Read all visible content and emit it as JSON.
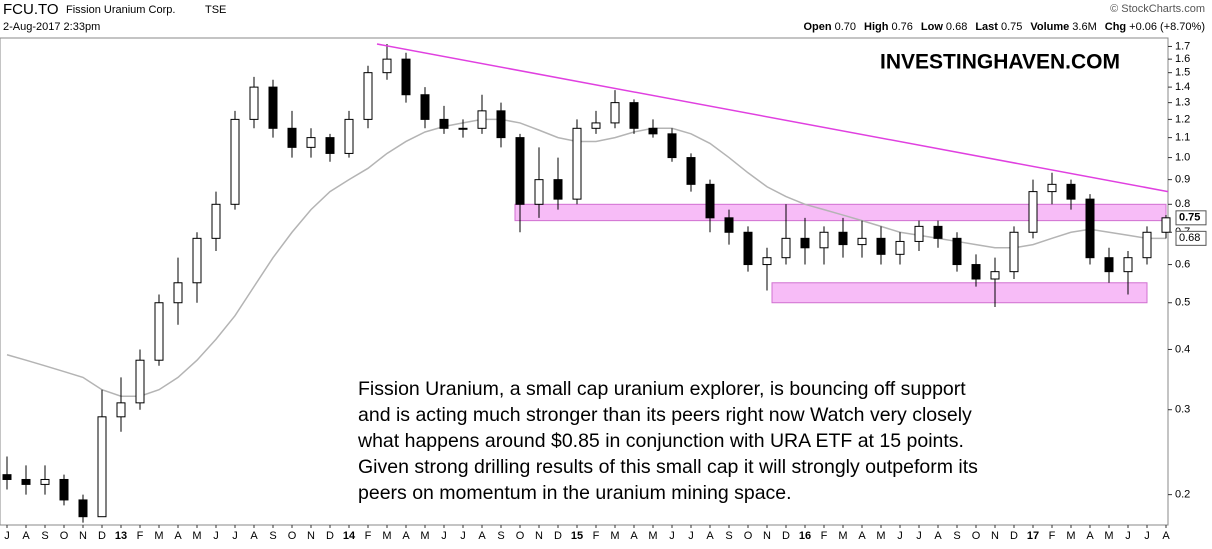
{
  "chart_data": {
    "type": "candlestick",
    "header": {
      "symbol": "FCU.TO",
      "name": "Fission Uranium Corp.",
      "exchange": "TSE",
      "date": "2-Aug-2017 2:33pm",
      "source": "© StockCharts.com"
    },
    "quote": [
      {
        "label": "Open",
        "value": "0.70"
      },
      {
        "label": "High",
        "value": "0.76"
      },
      {
        "label": "Low",
        "value": "0.68"
      },
      {
        "label": "Last",
        "value": "0.75"
      },
      {
        "label": "Volume",
        "value": "3.6M"
      },
      {
        "label": "Chg",
        "value": "+0.06 (+8.70%)"
      }
    ],
    "watermark": "INVESTINGHAVEN.COM",
    "annotation": [
      "Fission Uranium, a small cap uranium explorer, is bouncing off support",
      "and is acting much stronger than its peers right now Watch very closely",
      "what happens around $0.85 in conjunction with URA ETF at 15 points.",
      "Given strong drilling results of this small cap it will strongly outpeform its",
      "peers on momentum in the uranium mining space."
    ],
    "categories": [
      "J",
      "A",
      "S",
      "O",
      "N",
      "D",
      "13",
      "F",
      "M",
      "A",
      "M",
      "J",
      "J",
      "A",
      "S",
      "O",
      "N",
      "D",
      "14",
      "F",
      "M",
      "A",
      "M",
      "J",
      "J",
      "A",
      "S",
      "O",
      "N",
      "D",
      "15",
      "F",
      "M",
      "A",
      "M",
      "J",
      "J",
      "A",
      "S",
      "O",
      "N",
      "D",
      "16",
      "F",
      "M",
      "A",
      "M",
      "J",
      "J",
      "A",
      "S",
      "O",
      "N",
      "D",
      "17",
      "F",
      "M",
      "A",
      "M",
      "J",
      "J",
      "A"
    ],
    "open": [
      0.22,
      0.215,
      0.21,
      0.215,
      0.195,
      0.18,
      0.29,
      0.31,
      0.38,
      0.5,
      0.55,
      0.68,
      0.8,
      1.2,
      1.4,
      1.15,
      1.05,
      1.1,
      1.02,
      1.2,
      1.5,
      1.6,
      1.35,
      1.2,
      1.15,
      1.15,
      1.25,
      1.1,
      0.8,
      0.9,
      0.82,
      1.15,
      1.18,
      1.3,
      1.15,
      1.12,
      1.0,
      0.88,
      0.75,
      0.7,
      0.6,
      0.62,
      0.68,
      0.65,
      0.7,
      0.66,
      0.68,
      0.63,
      0.67,
      0.72,
      0.68,
      0.6,
      0.56,
      0.58,
      0.7,
      0.85,
      0.88,
      0.82,
      0.62,
      0.58,
      0.62,
      0.7
    ],
    "high": [
      0.24,
      0.23,
      0.23,
      0.22,
      0.2,
      0.33,
      0.35,
      0.4,
      0.52,
      0.62,
      0.7,
      0.85,
      1.25,
      1.47,
      1.45,
      1.25,
      1.15,
      1.12,
      1.25,
      1.55,
      1.72,
      1.65,
      1.4,
      1.28,
      1.2,
      1.35,
      1.3,
      1.12,
      1.05,
      1.0,
      1.2,
      1.25,
      1.38,
      1.32,
      1.2,
      1.15,
      1.02,
      0.9,
      0.78,
      0.72,
      0.65,
      0.8,
      0.75,
      0.72,
      0.75,
      0.74,
      0.72,
      0.7,
      0.74,
      0.74,
      0.7,
      0.63,
      0.62,
      0.72,
      0.9,
      0.93,
      0.9,
      0.84,
      0.65,
      0.64,
      0.72,
      0.76
    ],
    "low": [
      0.205,
      0.2,
      0.2,
      0.19,
      0.175,
      0.18,
      0.27,
      0.3,
      0.37,
      0.45,
      0.5,
      0.64,
      0.78,
      1.15,
      1.1,
      1.0,
      1.0,
      0.98,
      1.0,
      1.15,
      1.45,
      1.3,
      1.15,
      1.12,
      1.1,
      1.12,
      1.05,
      0.7,
      0.75,
      0.78,
      0.8,
      1.12,
      1.15,
      1.12,
      1.1,
      0.98,
      0.85,
      0.7,
      0.66,
      0.58,
      0.53,
      0.6,
      0.6,
      0.6,
      0.62,
      0.62,
      0.6,
      0.6,
      0.64,
      0.65,
      0.58,
      0.54,
      0.49,
      0.56,
      0.68,
      0.8,
      0.78,
      0.6,
      0.55,
      0.52,
      0.6,
      0.68
    ],
    "close": [
      0.215,
      0.21,
      0.215,
      0.195,
      0.18,
      0.29,
      0.31,
      0.38,
      0.5,
      0.55,
      0.68,
      0.8,
      1.2,
      1.4,
      1.15,
      1.05,
      1.1,
      1.02,
      1.2,
      1.5,
      1.6,
      1.35,
      1.2,
      1.15,
      1.15,
      1.25,
      1.1,
      0.8,
      0.9,
      0.82,
      1.15,
      1.18,
      1.3,
      1.15,
      1.12,
      1.0,
      0.88,
      0.75,
      0.7,
      0.6,
      0.62,
      0.68,
      0.65,
      0.7,
      0.66,
      0.68,
      0.63,
      0.67,
      0.72,
      0.68,
      0.6,
      0.56,
      0.58,
      0.7,
      0.85,
      0.88,
      0.82,
      0.62,
      0.58,
      0.62,
      0.7,
      0.75
    ],
    "moving_average": {
      "color": "#b4b4b4",
      "values": [
        0.39,
        0.38,
        0.37,
        0.36,
        0.35,
        0.33,
        0.32,
        0.32,
        0.33,
        0.35,
        0.38,
        0.42,
        0.47,
        0.54,
        0.62,
        0.7,
        0.78,
        0.85,
        0.9,
        0.95,
        1.02,
        1.08,
        1.13,
        1.16,
        1.18,
        1.2,
        1.2,
        1.18,
        1.14,
        1.1,
        1.08,
        1.08,
        1.1,
        1.13,
        1.15,
        1.15,
        1.12,
        1.07,
        1.0,
        0.93,
        0.87,
        0.83,
        0.8,
        0.78,
        0.76,
        0.74,
        0.72,
        0.7,
        0.69,
        0.68,
        0.67,
        0.66,
        0.65,
        0.65,
        0.66,
        0.68,
        0.7,
        0.71,
        0.7,
        0.69,
        0.68,
        0.68
      ]
    },
    "trendline": {
      "color": "#e040e0",
      "values": [
        1.72,
        0.85
      ]
    },
    "support_zones": {
      "color": "#f4a6f4",
      "zones": [
        {
          "low": 0.74,
          "high": 0.8
        },
        {
          "low": 0.5,
          "high": 0.55
        }
      ]
    },
    "price_labels": [
      {
        "value": 0.75,
        "label": "0.75"
      },
      {
        "value": 0.68,
        "label": "0.68"
      }
    ],
    "log_scale": true,
    "ylim": [
      0.173,
      1.77
    ],
    "yticks": [
      0.2,
      0.3,
      0.4,
      0.5,
      0.6,
      0.7,
      0.8,
      0.9,
      {
        "value": 1,
        "label": "1.0"
      },
      1.1,
      1.2,
      1.3,
      1.4,
      1.5,
      1.6,
      1.7
    ]
  }
}
